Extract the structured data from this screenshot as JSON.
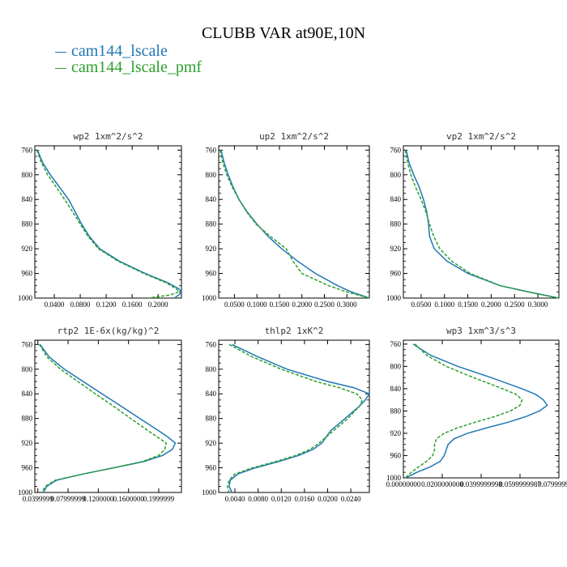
{
  "title": "CLUBB VAR at90E,10N",
  "colors": {
    "series1": "#1f77b4",
    "series2": "#2ca02c"
  },
  "legend": [
    {
      "name": "cam144_lscale",
      "color": "#1f77b4",
      "style": "solid"
    },
    {
      "name": "cam144_lscale_pmf",
      "color": "#2ca02c",
      "style": "dashed"
    }
  ],
  "chart_data": [
    {
      "type": "line",
      "title": "wp2  1xm^2/s^2",
      "xlim": [
        0.01,
        0.236
      ],
      "ylim": [
        1000,
        753
      ],
      "xticks": [
        0.04,
        0.08,
        0.12,
        0.16,
        0.2
      ],
      "xtick_labels": [
        "0.0400",
        "0.0800",
        "0.1200",
        "0.1600",
        "0.2000"
      ],
      "yticks": [
        760,
        800,
        840,
        880,
        920,
        960,
        1000
      ],
      "y": [
        760,
        780,
        800,
        820,
        840,
        860,
        880,
        900,
        920,
        940,
        960,
        975,
        985,
        990,
        995,
        1000
      ],
      "series": [
        {
          "name": "cam144_lscale",
          "x": [
            0.014,
            0.022,
            0.034,
            0.048,
            0.062,
            0.072,
            0.082,
            0.094,
            0.11,
            0.14,
            0.18,
            0.215,
            0.232,
            0.236,
            0.232,
            0.225
          ]
        },
        {
          "name": "cam144_lscale_pmf",
          "x": [
            0.013,
            0.02,
            0.03,
            0.043,
            0.056,
            0.068,
            0.08,
            0.092,
            0.108,
            0.138,
            0.178,
            0.212,
            0.228,
            0.232,
            0.218,
            0.185
          ]
        }
      ]
    },
    {
      "type": "line",
      "title": "up2  1xm^2/s^2",
      "xlim": [
        0.015,
        0.35
      ],
      "ylim": [
        1000,
        753
      ],
      "xticks": [
        0.05,
        0.1,
        0.15,
        0.2,
        0.25,
        0.3
      ],
      "xtick_labels": [
        "0.0500",
        "0.1000",
        "0.1500",
        "0.2000",
        "0.2500",
        "0.3000"
      ],
      "yticks": [
        760,
        800,
        840,
        880,
        920,
        960,
        1000
      ],
      "y": [
        760,
        780,
        800,
        820,
        840,
        860,
        880,
        900,
        920,
        940,
        960,
        980,
        990,
        1000
      ],
      "series": [
        {
          "name": "cam144_lscale",
          "x": [
            0.02,
            0.027,
            0.036,
            0.047,
            0.06,
            0.078,
            0.1,
            0.125,
            0.155,
            0.19,
            0.23,
            0.28,
            0.31,
            0.35
          ]
        },
        {
          "name": "cam144_lscale_pmf",
          "x": [
            0.018,
            0.024,
            0.033,
            0.045,
            0.06,
            0.077,
            0.098,
            0.13,
            0.165,
            0.18,
            0.2,
            0.26,
            0.3,
            0.35
          ]
        }
      ]
    },
    {
      "type": "line",
      "title": "vp2  1xm^2/s^2",
      "xlim": [
        0.012,
        0.345
      ],
      "ylim": [
        1000,
        753
      ],
      "xticks": [
        0.05,
        0.1,
        0.15,
        0.2,
        0.25,
        0.3
      ],
      "xtick_labels": [
        "0.0500",
        "0.1000",
        "0.1500",
        "0.2000",
        "0.2500",
        "0.3000"
      ],
      "yticks": [
        760,
        800,
        840,
        880,
        920,
        960,
        1000
      ],
      "y": [
        760,
        780,
        800,
        820,
        840,
        860,
        880,
        900,
        920,
        940,
        960,
        980,
        990,
        1000
      ],
      "series": [
        {
          "name": "cam144_lscale",
          "x": [
            0.018,
            0.024,
            0.034,
            0.046,
            0.055,
            0.062,
            0.066,
            0.068,
            0.078,
            0.105,
            0.15,
            0.22,
            0.28,
            0.345
          ]
        },
        {
          "name": "cam144_lscale_pmf",
          "x": [
            0.016,
            0.021,
            0.028,
            0.038,
            0.05,
            0.06,
            0.068,
            0.077,
            0.09,
            0.115,
            0.155,
            0.22,
            0.28,
            0.345
          ]
        }
      ]
    },
    {
      "type": "line",
      "title": "rtp2  1E-6x(kg/kg)^2",
      "xlim": [
        0.036,
        0.23
      ],
      "ylim": [
        1000,
        753
      ],
      "xticks": [
        0.04,
        0.08,
        0.12,
        0.16,
        0.2
      ],
      "xtick_labels": [
        "0.0399999",
        "0.07999999",
        "0.1200000",
        "0.1600000",
        "0.1999999"
      ],
      "yticks": [
        760,
        800,
        840,
        880,
        920,
        960,
        1000
      ],
      "y": [
        760,
        780,
        800,
        820,
        840,
        860,
        880,
        900,
        910,
        920,
        930,
        940,
        950,
        960,
        970,
        980,
        990,
        1000
      ],
      "series": [
        {
          "name": "cam144_lscale",
          "x": [
            0.043,
            0.055,
            0.075,
            0.1,
            0.125,
            0.15,
            0.175,
            0.2,
            0.212,
            0.222,
            0.218,
            0.205,
            0.18,
            0.14,
            0.1,
            0.065,
            0.052,
            0.047
          ]
        },
        {
          "name": "cam144_lscale_pmf",
          "x": [
            0.042,
            0.052,
            0.07,
            0.093,
            0.116,
            0.14,
            0.163,
            0.186,
            0.198,
            0.21,
            0.208,
            0.2,
            0.178,
            0.14,
            0.1,
            0.063,
            0.05,
            0.045
          ]
        }
      ]
    },
    {
      "type": "line",
      "title": "thlp2  1xK^2",
      "xlim": [
        0.0012,
        0.0272
      ],
      "ylim": [
        1000,
        753
      ],
      "xticks": [
        0.004,
        0.008,
        0.012,
        0.016,
        0.02,
        0.024
      ],
      "xtick_labels": [
        "0.0040",
        "0.0080",
        "0.0120",
        "0.0160",
        "0.0200",
        "0.0240"
      ],
      "yticks": [
        760,
        800,
        840,
        880,
        920,
        960,
        1000
      ],
      "y": [
        760,
        780,
        800,
        820,
        830,
        840,
        850,
        860,
        880,
        900,
        920,
        930,
        940,
        950,
        960,
        970,
        980,
        990,
        1000
      ],
      "series": [
        {
          "name": "cam144_lscale",
          "x": [
            0.0035,
            0.008,
            0.013,
            0.02,
            0.0245,
            0.0272,
            0.0265,
            0.0255,
            0.023,
            0.0205,
            0.019,
            0.0175,
            0.015,
            0.0115,
            0.0075,
            0.0045,
            0.0032,
            0.003,
            0.0035
          ]
        },
        {
          "name": "cam144_lscale_pmf",
          "x": [
            0.003,
            0.007,
            0.012,
            0.018,
            0.022,
            0.025,
            0.026,
            0.0255,
            0.0235,
            0.021,
            0.0185,
            0.017,
            0.0145,
            0.011,
            0.007,
            0.004,
            0.003,
            0.0027,
            0.003
          ]
        }
      ]
    },
    {
      "type": "line",
      "title": "wp3  1xm^3/s^3",
      "xlim": [
        0.0,
        0.08
      ],
      "ylim": [
        1000,
        753
      ],
      "xticks": [
        0.0,
        0.02,
        0.04,
        0.06,
        0.08
      ],
      "xtick_labels": [
        "0.00000000",
        "0.0200000000",
        "0.0399999998",
        "0.0599999987",
        "0.0799999980"
      ],
      "yticks": [
        760,
        800,
        840,
        880,
        920,
        960,
        1000
      ],
      "y": [
        760,
        780,
        800,
        820,
        840,
        850,
        860,
        870,
        880,
        890,
        900,
        910,
        920,
        930,
        940,
        950,
        960,
        970,
        980,
        990,
        1000
      ],
      "series": [
        {
          "name": "cam144_lscale",
          "x": [
            0.005,
            0.014,
            0.028,
            0.045,
            0.061,
            0.068,
            0.072,
            0.074,
            0.07,
            0.063,
            0.054,
            0.043,
            0.033,
            0.026,
            0.023,
            0.022,
            0.021,
            0.019,
            0.014,
            0.007,
            0.001
          ]
        },
        {
          "name": "cam144_lscale_pmf",
          "x": [
            0.006,
            0.012,
            0.022,
            0.036,
            0.051,
            0.058,
            0.061,
            0.06,
            0.055,
            0.047,
            0.037,
            0.028,
            0.021,
            0.017,
            0.016,
            0.016,
            0.015,
            0.012,
            0.008,
            0.004,
            0.001
          ]
        }
      ]
    }
  ]
}
